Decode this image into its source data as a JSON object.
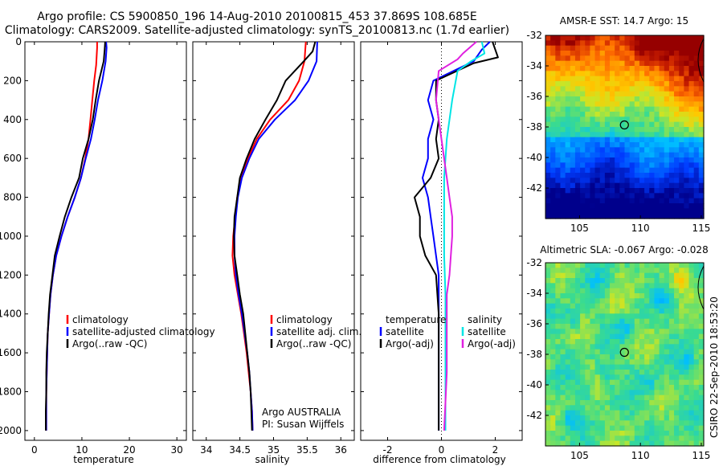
{
  "title_line1": "Argo profile: CS 5900850_196 14-Aug-2010 20100815_453 37.869S 108.685E",
  "title_line2": "Climatology: CARS2009. Satellite-adjusted climatology: synTS_20100813.nc (1.7d earlier)",
  "chart_data": [
    {
      "type": "line",
      "xlabel": "temperature",
      "ylabel": "",
      "xlim": [
        -2,
        32
      ],
      "ylim": [
        2050,
        0
      ],
      "xticks": [
        "0",
        "10",
        "20",
        "30"
      ],
      "yticks": [
        "0",
        "200",
        "400",
        "600",
        "800",
        "1000",
        "1200",
        "1400",
        "1600",
        "1800",
        "2000"
      ],
      "legend": {
        "position": "lower-right",
        "entries": [
          "climatology",
          "satellite-adjusted climatology",
          "Argo(..raw -QC)"
        ]
      },
      "series": [
        {
          "name": "climatology",
          "color": "#ff0000",
          "points": [
            [
              13.2,
              0
            ],
            [
              13.2,
              30
            ],
            [
              13.0,
              120
            ],
            [
              12.6,
              200
            ],
            [
              12.2,
              300
            ],
            [
              11.8,
              400
            ],
            [
              11.4,
              500
            ],
            [
              10.7,
              600
            ],
            [
              9.8,
              700
            ],
            [
              8.5,
              800
            ],
            [
              7.0,
              900
            ],
            [
              5.7,
              1000
            ],
            [
              4.6,
              1100
            ],
            [
              3.9,
              1200
            ],
            [
              3.4,
              1300
            ],
            [
              3.1,
              1400
            ],
            [
              2.8,
              1500
            ],
            [
              2.7,
              1600
            ],
            [
              2.6,
              1700
            ],
            [
              2.5,
              1800
            ],
            [
              2.5,
              1900
            ],
            [
              2.5,
              2000
            ]
          ]
        },
        {
          "name": "satellite-adjusted climatology",
          "color": "#0000ff",
          "points": [
            [
              15.1,
              0
            ],
            [
              15.2,
              30
            ],
            [
              15.0,
              100
            ],
            [
              14.3,
              200
            ],
            [
              13.4,
              300
            ],
            [
              12.7,
              400
            ],
            [
              11.9,
              500
            ],
            [
              10.8,
              600
            ],
            [
              9.8,
              700
            ],
            [
              8.5,
              800
            ],
            [
              7.0,
              900
            ],
            [
              5.7,
              1000
            ],
            [
              4.6,
              1100
            ],
            [
              3.9,
              1200
            ],
            [
              3.4,
              1300
            ],
            [
              3.1,
              1400
            ],
            [
              2.8,
              1500
            ],
            [
              2.7,
              1600
            ],
            [
              2.6,
              1700
            ],
            [
              2.5,
              1800
            ],
            [
              2.5,
              1900
            ],
            [
              2.5,
              2000
            ]
          ]
        },
        {
          "name": "Argo(..raw -QC)",
          "color": "#000000",
          "points": [
            [
              14.9,
              0
            ],
            [
              14.8,
              40
            ],
            [
              14.6,
              100
            ],
            [
              13.6,
              200
            ],
            [
              12.9,
              300
            ],
            [
              12.3,
              400
            ],
            [
              11.4,
              500
            ],
            [
              10.2,
              600
            ],
            [
              9.4,
              700
            ],
            [
              7.8,
              800
            ],
            [
              6.4,
              900
            ],
            [
              5.3,
              1000
            ],
            [
              4.3,
              1100
            ],
            [
              3.8,
              1200
            ],
            [
              3.3,
              1300
            ],
            [
              3.0,
              1400
            ],
            [
              2.8,
              1500
            ],
            [
              2.6,
              1600
            ],
            [
              2.5,
              1700
            ],
            [
              2.5,
              1800
            ],
            [
              2.4,
              1900
            ],
            [
              2.4,
              2000
            ]
          ]
        }
      ]
    },
    {
      "type": "line",
      "xlabel": "salinity",
      "xlim": [
        33.8,
        36.2
      ],
      "ylim": [
        2050,
        0
      ],
      "xticks": [
        "34",
        "34.5",
        "35",
        "35.5",
        "36"
      ],
      "legend": {
        "position": "lower-right",
        "entries": [
          "climatology",
          "satellite adj. clim.",
          "Argo(..raw -QC)"
        ]
      },
      "annotations": [
        "Argo AUSTRALIA",
        "PI: Susan Wijffels"
      ],
      "series": [
        {
          "name": "climatology",
          "color": "#ff0000",
          "points": [
            [
              35.48,
              0
            ],
            [
              35.46,
              100
            ],
            [
              35.38,
              200
            ],
            [
              35.22,
              300
            ],
            [
              34.95,
              400
            ],
            [
              34.75,
              500
            ],
            [
              34.62,
              600
            ],
            [
              34.52,
              700
            ],
            [
              34.46,
              800
            ],
            [
              34.43,
              900
            ],
            [
              34.4,
              1000
            ],
            [
              34.39,
              1100
            ],
            [
              34.42,
              1200
            ],
            [
              34.47,
              1300
            ],
            [
              34.52,
              1400
            ],
            [
              34.56,
              1500
            ],
            [
              34.6,
              1600
            ],
            [
              34.63,
              1700
            ],
            [
              34.66,
              1800
            ],
            [
              34.68,
              1900
            ],
            [
              34.69,
              2000
            ]
          ]
        },
        {
          "name": "satellite adj. clim.",
          "color": "#0000ff",
          "points": [
            [
              35.65,
              0
            ],
            [
              35.64,
              100
            ],
            [
              35.52,
              200
            ],
            [
              35.32,
              300
            ],
            [
              35.02,
              400
            ],
            [
              34.78,
              500
            ],
            [
              34.64,
              600
            ],
            [
              34.53,
              700
            ],
            [
              34.47,
              800
            ],
            [
              34.44,
              900
            ],
            [
              34.42,
              1000
            ],
            [
              34.42,
              1100
            ],
            [
              34.44,
              1200
            ],
            [
              34.48,
              1300
            ],
            [
              34.53,
              1400
            ],
            [
              34.57,
              1500
            ],
            [
              34.61,
              1600
            ],
            [
              34.64,
              1700
            ],
            [
              34.66,
              1800
            ],
            [
              34.68,
              1900
            ],
            [
              34.69,
              2000
            ]
          ]
        },
        {
          "name": "Argo(..raw -QC)",
          "color": "#000000",
          "points": [
            [
              35.62,
              0
            ],
            [
              35.58,
              50
            ],
            [
              35.45,
              100
            ],
            [
              35.18,
              200
            ],
            [
              35.05,
              300
            ],
            [
              34.88,
              400
            ],
            [
              34.72,
              500
            ],
            [
              34.6,
              600
            ],
            [
              34.5,
              700
            ],
            [
              34.46,
              800
            ],
            [
              34.42,
              900
            ],
            [
              34.41,
              1000
            ],
            [
              34.42,
              1100
            ],
            [
              34.46,
              1200
            ],
            [
              34.5,
              1300
            ],
            [
              34.55,
              1400
            ],
            [
              34.58,
              1500
            ],
            [
              34.61,
              1600
            ],
            [
              34.64,
              1700
            ],
            [
              34.66,
              1800
            ],
            [
              34.67,
              1900
            ],
            [
              34.68,
              2000
            ]
          ]
        }
      ]
    },
    {
      "type": "line",
      "xlabel": "difference from climatology",
      "xlim": [
        -3,
        3
      ],
      "ylim": [
        2050,
        0
      ],
      "xticks": [
        "-2",
        "0",
        "2"
      ],
      "legend": {
        "position": "lower-center",
        "groups": [
          {
            "title": "temperature",
            "entries": [
              "satellite",
              "Argo(-adj)"
            ]
          },
          {
            "title": "salinity",
            "entries": [
              "satellite",
              "Argo(-adj)"
            ]
          }
        ]
      },
      "series": [
        {
          "name": "temperature satellite",
          "color": "#0000ff",
          "points": [
            [
              1.8,
              0
            ],
            [
              1.5,
              40
            ],
            [
              1.2,
              100
            ],
            [
              -0.3,
              200
            ],
            [
              -0.5,
              300
            ],
            [
              -0.3,
              400
            ],
            [
              -0.5,
              500
            ],
            [
              -0.5,
              600
            ],
            [
              -0.7,
              700
            ],
            [
              -0.5,
              800
            ],
            [
              -0.4,
              900
            ],
            [
              -0.3,
              1000
            ],
            [
              -0.2,
              1100
            ],
            [
              -0.1,
              1200
            ],
            [
              -0.1,
              1400
            ],
            [
              -0.1,
              1600
            ],
            [
              -0.1,
              1800
            ],
            [
              -0.1,
              2000
            ]
          ]
        },
        {
          "name": "temperature Argo(-adj)",
          "color": "#000000",
          "points": [
            [
              1.9,
              0
            ],
            [
              2.1,
              80
            ],
            [
              1.2,
              110
            ],
            [
              -0.2,
              200
            ],
            [
              -0.2,
              300
            ],
            [
              -0.1,
              400
            ],
            [
              -0.2,
              500
            ],
            [
              -0.1,
              600
            ],
            [
              -0.4,
              700
            ],
            [
              -1.0,
              800
            ],
            [
              -0.8,
              900
            ],
            [
              -0.8,
              1000
            ],
            [
              -0.6,
              1100
            ],
            [
              -0.2,
              1200
            ],
            [
              -0.1,
              1400
            ],
            [
              -0.1,
              1600
            ],
            [
              -0.1,
              1800
            ],
            [
              -0.1,
              2000
            ]
          ]
        },
        {
          "name": "salinity satellite",
          "color": "#00e5e5",
          "points": [
            [
              1.5,
              0
            ],
            [
              1.6,
              60
            ],
            [
              1.1,
              100
            ],
            [
              0.6,
              150
            ],
            [
              0.4,
              300
            ],
            [
              0.2,
              500
            ],
            [
              0.1,
              700
            ],
            [
              0.1,
              900
            ],
            [
              0.1,
              1100
            ],
            [
              0.15,
              1300
            ],
            [
              0.15,
              1500
            ],
            [
              0.15,
              1700
            ],
            [
              0.15,
              1900
            ],
            [
              0.15,
              2000
            ]
          ]
        },
        {
          "name": "salinity Argo(-adj)",
          "color": "#e020e0",
          "points": [
            [
              1.3,
              0
            ],
            [
              0.8,
              60
            ],
            [
              0.6,
              90
            ],
            [
              -0.1,
              150
            ],
            [
              -0.2,
              300
            ],
            [
              -0.1,
              400
            ],
            [
              0.0,
              500
            ],
            [
              0.2,
              700
            ],
            [
              0.3,
              800
            ],
            [
              0.4,
              900
            ],
            [
              0.4,
              1000
            ],
            [
              0.3,
              1200
            ],
            [
              0.2,
              1300
            ],
            [
              0.2,
              1500
            ],
            [
              0.2,
              1700
            ],
            [
              0.1,
              2000
            ]
          ]
        }
      ]
    },
    {
      "type": "heatmap",
      "title": "AMSR-E SST: 14.7 Argo: 15",
      "xlim": [
        102.2,
        115.2
      ],
      "ylim": [
        -44,
        -32
      ],
      "xticks": [
        "105",
        "110",
        "115"
      ],
      "yticks": [
        "-32",
        "-34",
        "-36",
        "-38",
        "-40",
        "-42"
      ],
      "marker": {
        "lon": 108.685,
        "lat": -37.869
      }
    },
    {
      "type": "heatmap",
      "title": "Altimetric SLA: -0.067 Argo: -0.028",
      "xlim": [
        102.2,
        115.2
      ],
      "ylim": [
        -44,
        -32
      ],
      "xticks": [
        "105",
        "110",
        "115"
      ],
      "yticks": [
        "-32",
        "-34",
        "-36",
        "-38",
        "-40",
        "-42"
      ],
      "marker": {
        "lon": 108.685,
        "lat": -37.869
      }
    }
  ],
  "credit": "CSIRO 22-Sep-2010 18:53:20"
}
